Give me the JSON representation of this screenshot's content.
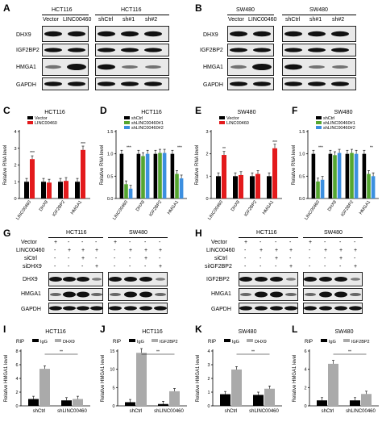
{
  "panel_letters": [
    "A",
    "B",
    "C",
    "D",
    "E",
    "F",
    "G",
    "H",
    "I",
    "J",
    "K",
    "L"
  ],
  "panel_A": {
    "title_left": "HCT116",
    "title_right": "HCT116",
    "lanes": [
      "Vector",
      "LINC00460",
      "shCtrl",
      "sh#1",
      "sh#2"
    ],
    "rows": [
      "DHX9",
      "IGF2BP2",
      "HMGA1",
      "GAPDH"
    ]
  },
  "panel_B": {
    "title_left": "SW480",
    "title_right": "SW480",
    "lanes": [
      "Vector",
      "LINC00460",
      "shCtrl",
      "sh#1",
      "sh#2"
    ],
    "rows": [
      "DHX9",
      "IGF2BP2",
      "HMGA1",
      "GAPDH"
    ]
  },
  "panel_G": {
    "title_left": "HCT116",
    "title_right": "SW480",
    "cond_rows": [
      {
        "name": "Vector",
        "signs": [
          "+",
          "-",
          "-",
          "-",
          "+",
          "-",
          "-",
          "-"
        ]
      },
      {
        "name": "LINC00460",
        "signs": [
          "-",
          "+",
          "+",
          "+",
          "-",
          "+",
          "+",
          "+"
        ]
      },
      {
        "name": "siCtrl",
        "signs": [
          "-",
          "-",
          "+",
          "-",
          "-",
          "-",
          "+",
          "-"
        ]
      },
      {
        "name": "siDHX9",
        "signs": [
          "-",
          "-",
          "-",
          "+",
          "-",
          "-",
          "-",
          "+"
        ]
      }
    ],
    "rows": [
      "DHX9",
      "HMGA1",
      "GAPDH"
    ]
  },
  "panel_H": {
    "title_left": "HCT116",
    "title_right": "SW480",
    "cond_rows": [
      {
        "name": "Vector",
        "signs": [
          "+",
          "-",
          "-",
          "-",
          "+",
          "-",
          "-",
          "-"
        ]
      },
      {
        "name": "LINC00460",
        "signs": [
          "-",
          "+",
          "+",
          "+",
          "-",
          "+",
          "+",
          "+"
        ]
      },
      {
        "name": "siCtrl",
        "signs": [
          "-",
          "-",
          "+",
          "-",
          "-",
          "-",
          "+",
          "-"
        ]
      },
      {
        "name": "siIGF2BP2",
        "signs": [
          "-",
          "-",
          "-",
          "+",
          "-",
          "-",
          "-",
          "+"
        ]
      }
    ],
    "rows": [
      "IGF2BP2",
      "HMGA1",
      "GAPDH"
    ]
  },
  "chart_data": [
    {
      "panel": "C",
      "type": "bar",
      "title": "HCT116",
      "ylabel": "Relative RNA level",
      "ylim": [
        0,
        4
      ],
      "ticks": [
        0,
        1,
        2,
        3,
        4
      ],
      "categories": [
        "LINC00460",
        "DHX9",
        "IGF2BP2",
        "HMGA1"
      ],
      "series": [
        {
          "name": "Vector",
          "color": "#000000",
          "values": [
            1.0,
            1.0,
            1.0,
            1.0
          ]
        },
        {
          "name": "LINC00460",
          "color": "#e31a1c",
          "values": [
            2.35,
            0.95,
            1.05,
            2.9
          ]
        }
      ],
      "annotations": [
        "***",
        "",
        "",
        "***"
      ]
    },
    {
      "panel": "D",
      "type": "bar",
      "title": "HCT116",
      "ylabel": "Relative RNA level",
      "ylim": [
        0,
        1.5
      ],
      "ticks": [
        0.0,
        0.5,
        1.0,
        1.5
      ],
      "categories": [
        "LINC00460",
        "DHX9",
        "IGF2BP2",
        "HMGA1"
      ],
      "series": [
        {
          "name": "shCtrl",
          "color": "#000000",
          "values": [
            1.0,
            1.0,
            1.0,
            1.0
          ]
        },
        {
          "name": "shLINC00460#1",
          "color": "#55a630",
          "values": [
            0.32,
            0.95,
            1.02,
            0.55
          ]
        },
        {
          "name": "shLINC00460#2",
          "color": "#3c8fe0",
          "values": [
            0.22,
            1.0,
            1.02,
            0.45
          ]
        }
      ],
      "annotations": [
        "***",
        "",
        "",
        "***"
      ]
    },
    {
      "panel": "E",
      "type": "bar",
      "title": "SW480",
      "ylabel": "Relative RNA level",
      "ylim": [
        0,
        3
      ],
      "ticks": [
        0,
        1,
        2,
        3
      ],
      "categories": [
        "LINC00460",
        "DHX9",
        "IGF2BP2",
        "HMGA1"
      ],
      "series": [
        {
          "name": "Vector",
          "color": "#000000",
          "values": [
            1.0,
            1.0,
            1.0,
            1.0
          ]
        },
        {
          "name": "LINC00460",
          "color": "#e31a1c",
          "values": [
            1.95,
            1.05,
            1.1,
            2.25
          ]
        }
      ],
      "annotations": [
        "**",
        "",
        "",
        "***"
      ]
    },
    {
      "panel": "F",
      "type": "bar",
      "title": "SW480",
      "ylabel": "Relative RNA level",
      "ylim": [
        0,
        1.5
      ],
      "ticks": [
        0.0,
        0.5,
        1.0,
        1.5
      ],
      "categories": [
        "LINC00460",
        "DHX9",
        "IGF2BP2",
        "HMGA1"
      ],
      "series": [
        {
          "name": "shCtrl",
          "color": "#000000",
          "values": [
            1.0,
            1.0,
            1.0,
            1.0
          ]
        },
        {
          "name": "shLINC00460#1",
          "color": "#55a630",
          "values": [
            0.38,
            0.97,
            1.02,
            0.55
          ]
        },
        {
          "name": "shLINC00460#2",
          "color": "#3c8fe0",
          "values": [
            0.42,
            1.02,
            1.0,
            0.5
          ]
        }
      ],
      "annotations": [
        "***",
        "",
        "",
        "**"
      ]
    },
    {
      "panel": "I",
      "type": "bar",
      "title": "HCT116",
      "ylabel": "Relative HMGA1 level",
      "ylim": [
        0,
        8
      ],
      "ticks": [
        0,
        2,
        4,
        6,
        8
      ],
      "legend_prefix": "RIP",
      "categories": [
        "shCtrl",
        "shLINC00460"
      ],
      "series": [
        {
          "name": "IgG",
          "color": "#000000",
          "values": [
            1.0,
            0.8
          ]
        },
        {
          "name": "DHX9",
          "color": "#aaaaaa",
          "values": [
            5.4,
            1.0
          ]
        }
      ],
      "sig": "**"
    },
    {
      "panel": "J",
      "type": "bar",
      "title": "HCT116",
      "ylabel": "Relative HMGA1 level",
      "ylim": [
        0,
        15
      ],
      "ticks": [
        0,
        5,
        10,
        15
      ],
      "legend_prefix": "RIP",
      "categories": [
        "shCtrl",
        "shLINC00460"
      ],
      "series": [
        {
          "name": "IgG",
          "color": "#000000",
          "values": [
            1.0,
            0.5
          ]
        },
        {
          "name": "IGF2BP2",
          "color": "#aaaaaa",
          "values": [
            14.5,
            4.0
          ]
        }
      ],
      "sig": "**"
    },
    {
      "panel": "K",
      "type": "bar",
      "title": "SW480",
      "ylabel": "Relative HMGA1 level",
      "ylim": [
        0,
        4
      ],
      "ticks": [
        0,
        1,
        2,
        3,
        4
      ],
      "legend_prefix": "RIP",
      "categories": [
        "shCtrl",
        "shLINC00460"
      ],
      "series": [
        {
          "name": "IgG",
          "color": "#000000",
          "values": [
            0.85,
            0.8
          ]
        },
        {
          "name": "DHX9",
          "color": "#aaaaaa",
          "values": [
            2.65,
            1.25
          ]
        }
      ],
      "sig": "**"
    },
    {
      "panel": "L",
      "type": "bar",
      "title": "SW480",
      "ylabel": "Relative HMGA1 level",
      "ylim": [
        0,
        6
      ],
      "ticks": [
        0,
        2,
        4,
        6
      ],
      "legend_prefix": "RIP",
      "categories": [
        "shCtrl",
        "shLINC00460"
      ],
      "series": [
        {
          "name": "IgG",
          "color": "#000000",
          "values": [
            0.6,
            0.6
          ]
        },
        {
          "name": "IGF2BP2",
          "color": "#aaaaaa",
          "values": [
            4.6,
            1.3
          ]
        }
      ],
      "sig": "**"
    }
  ]
}
